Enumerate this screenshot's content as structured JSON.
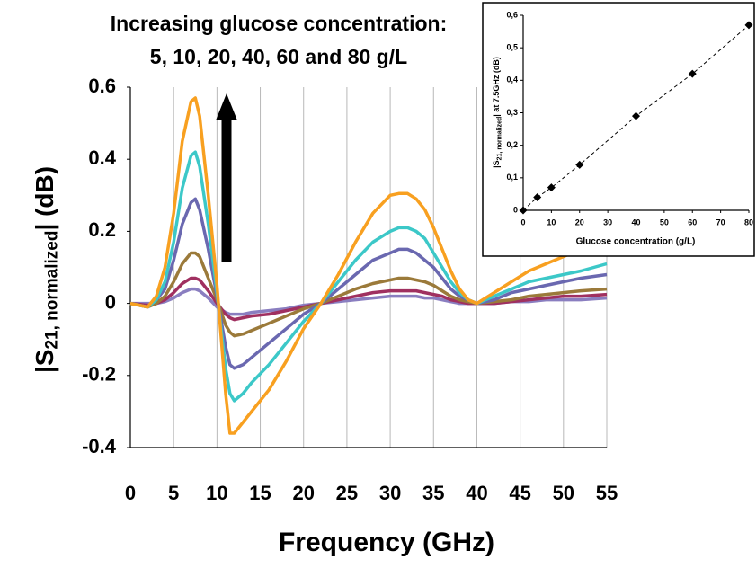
{
  "chart_data": [
    {
      "type": "line",
      "annotations": [
        "Increasing glucose concentration:",
        "5, 10, 20, 40, 60 and 80 g/L"
      ],
      "ylabel": [
        "|S",
        "21, normalized",
        "| (dB)"
      ],
      "xlabel": "Frequency (GHz)",
      "x": [
        0,
        2,
        3,
        4,
        5,
        6,
        7,
        7.5,
        8,
        9,
        10,
        11,
        11.5,
        12,
        13,
        14,
        16,
        18,
        20,
        22,
        24,
        26,
        28,
        30,
        31,
        32,
        33,
        34,
        35,
        36,
        37,
        38,
        39,
        40,
        42,
        44,
        46,
        48,
        50,
        52,
        55
      ],
      "xlim": [
        0,
        55
      ],
      "xticks": [
        0,
        5,
        10,
        15,
        20,
        25,
        30,
        35,
        40,
        45,
        50,
        55
      ],
      "ylim": [
        -0.4,
        0.6
      ],
      "yticks": [
        -0.4,
        -0.2,
        0,
        0.2,
        0.4,
        0.6
      ],
      "grid": "vertical",
      "series": [
        {
          "color": "#8a7ec0",
          "values": [
            0,
            0,
            0,
            0.005,
            0.015,
            0.03,
            0.04,
            0.04,
            0.035,
            0.015,
            -0.01,
            -0.025,
            -0.03,
            -0.03,
            -0.03,
            -0.025,
            -0.02,
            -0.015,
            -0.005,
            0,
            0.005,
            0.01,
            0.015,
            0.02,
            0.02,
            0.02,
            0.02,
            0.015,
            0.015,
            0.01,
            0.005,
            0,
            0,
            0,
            0,
            0.005,
            0.005,
            0.01,
            0.01,
            0.01,
            0.015
          ]
        },
        {
          "color": "#a03060",
          "values": [
            0,
            -0.005,
            0,
            0.01,
            0.03,
            0.055,
            0.07,
            0.07,
            0.065,
            0.035,
            0,
            -0.03,
            -0.04,
            -0.045,
            -0.04,
            -0.035,
            -0.03,
            -0.02,
            -0.01,
            0,
            0.01,
            0.02,
            0.03,
            0.035,
            0.035,
            0.035,
            0.035,
            0.03,
            0.025,
            0.02,
            0.01,
            0.005,
            0,
            0,
            0,
            0.005,
            0.01,
            0.015,
            0.02,
            0.02,
            0.025
          ]
        },
        {
          "color": "#9b7a3a",
          "values": [
            0,
            -0.01,
            0,
            0.02,
            0.06,
            0.11,
            0.14,
            0.14,
            0.13,
            0.07,
            0.01,
            -0.06,
            -0.08,
            -0.09,
            -0.085,
            -0.075,
            -0.055,
            -0.035,
            -0.015,
            0,
            0.02,
            0.04,
            0.055,
            0.065,
            0.07,
            0.07,
            0.065,
            0.06,
            0.05,
            0.035,
            0.02,
            0.01,
            0.005,
            0,
            0.005,
            0.01,
            0.02,
            0.025,
            0.03,
            0.035,
            0.04
          ]
        },
        {
          "color": "#6a68b0",
          "values": [
            0,
            -0.01,
            0.01,
            0.04,
            0.12,
            0.22,
            0.28,
            0.29,
            0.26,
            0.15,
            0.02,
            -0.12,
            -0.17,
            -0.18,
            -0.17,
            -0.15,
            -0.11,
            -0.07,
            -0.03,
            0,
            0.04,
            0.08,
            0.12,
            0.14,
            0.15,
            0.15,
            0.14,
            0.12,
            0.1,
            0.07,
            0.04,
            0.02,
            0.01,
            0,
            0.01,
            0.03,
            0.04,
            0.05,
            0.06,
            0.07,
            0.08
          ]
        },
        {
          "color": "#3cc8c8",
          "values": [
            0,
            -0.01,
            0.01,
            0.06,
            0.17,
            0.32,
            0.41,
            0.42,
            0.38,
            0.22,
            0.03,
            -0.18,
            -0.25,
            -0.27,
            -0.25,
            -0.22,
            -0.17,
            -0.11,
            -0.05,
            0,
            0.06,
            0.12,
            0.17,
            0.2,
            0.21,
            0.21,
            0.2,
            0.18,
            0.14,
            0.1,
            0.06,
            0.03,
            0.01,
            0,
            0.02,
            0.04,
            0.06,
            0.07,
            0.08,
            0.09,
            0.11
          ]
        },
        {
          "color": "#f8a020",
          "values": [
            0,
            -0.01,
            0.02,
            0.1,
            0.25,
            0.45,
            0.56,
            0.57,
            0.52,
            0.3,
            0.05,
            -0.25,
            -0.36,
            -0.36,
            -0.33,
            -0.3,
            -0.24,
            -0.16,
            -0.07,
            0,
            0.08,
            0.17,
            0.25,
            0.3,
            0.305,
            0.305,
            0.29,
            0.26,
            0.21,
            0.15,
            0.09,
            0.04,
            0.01,
            0,
            0.03,
            0.06,
            0.09,
            0.11,
            0.13,
            0.15,
            0.16
          ]
        }
      ]
    },
    {
      "type": "scatter",
      "ylabel": [
        "|S",
        "21, normalized",
        "| at 7.5GHz (dB)"
      ],
      "xlabel": "Glucose concentration (g/L)",
      "x": [
        0,
        5,
        10,
        20,
        40,
        60,
        80
      ],
      "values": [
        0,
        0.04,
        0.07,
        0.14,
        0.29,
        0.42,
        0.57
      ],
      "color": "#000000",
      "trendline": "dashed",
      "xlim": [
        0,
        80
      ],
      "xticks": [
        0,
        10,
        20,
        30,
        40,
        50,
        60,
        70,
        80
      ],
      "ylim": [
        0,
        0.6
      ],
      "yticks": [
        0,
        {
          "value": 0.1,
          "label": "0,1"
        },
        {
          "value": 0.2,
          "label": "0,2"
        },
        {
          "value": 0.3,
          "label": "0,3"
        },
        {
          "value": 0.4,
          "label": "0,4"
        },
        {
          "value": 0.5,
          "label": "0,5"
        },
        {
          "value": 0.6,
          "label": "0,6"
        }
      ]
    }
  ]
}
